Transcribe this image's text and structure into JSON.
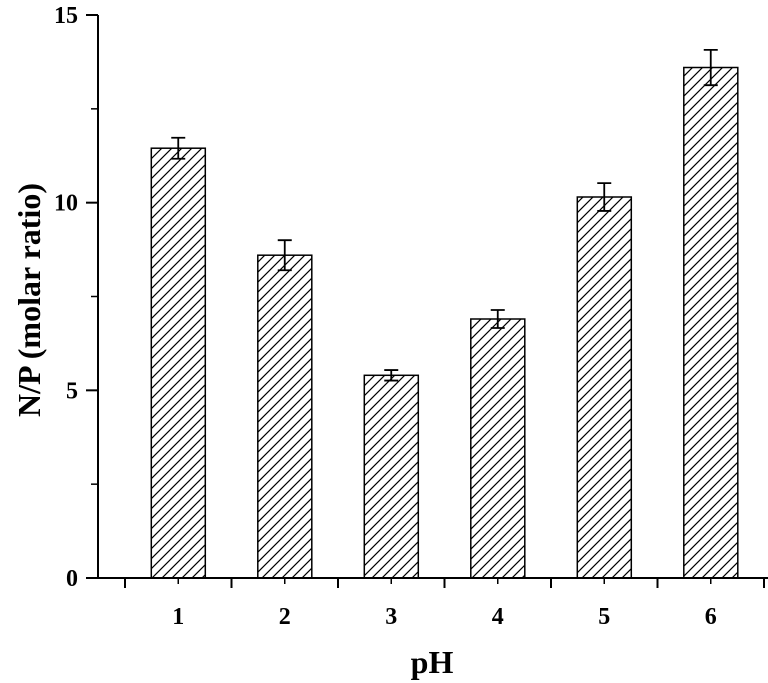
{
  "chart_data": {
    "type": "bar",
    "title": "",
    "xlabel": "pH",
    "ylabel": "N/P (molar ratio)",
    "categories": [
      "1",
      "2",
      "3",
      "4",
      "5",
      "6"
    ],
    "values": [
      11.45,
      8.6,
      5.4,
      6.9,
      10.15,
      13.6
    ],
    "errors": [
      0.28,
      0.4,
      0.14,
      0.24,
      0.37,
      0.47
    ],
    "ylim": [
      0,
      15
    ],
    "yticks": [
      "0",
      "5",
      "10",
      "15"
    ],
    "grid": false,
    "legend": "none",
    "bar_fill": "hatched",
    "colors": {
      "axis": "#000000",
      "bar_stroke": "#000000",
      "bar_background": "#ffffff",
      "hatch": "#000000"
    }
  }
}
